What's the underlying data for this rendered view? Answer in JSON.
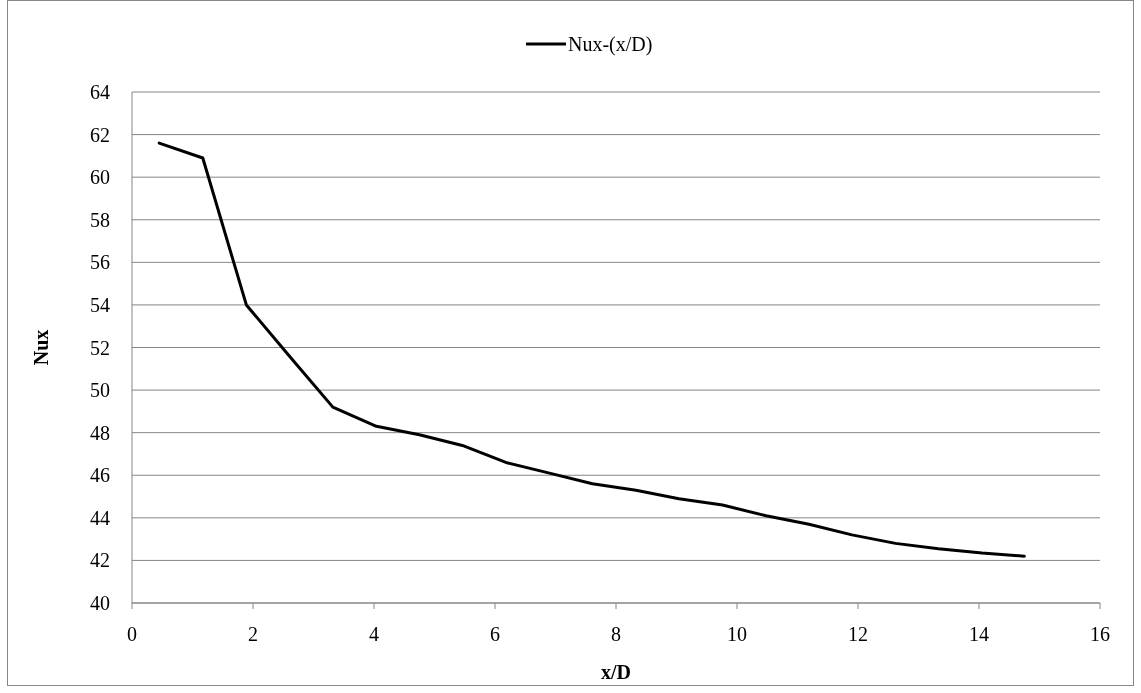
{
  "chart_data": {
    "type": "line",
    "xlabel": "x/D",
    "ylabel": "Nux",
    "x": [
      0.45,
      1.17,
      1.89,
      2.6,
      3.32,
      4.04,
      4.75,
      5.46,
      6.18,
      6.9,
      7.61,
      8.33,
      9.04,
      9.76,
      10.48,
      11.19,
      11.9,
      12.62,
      13.33,
      14.05,
      14.75
    ],
    "series": [
      {
        "name": "Nux-(x/D)",
        "color": "#000000",
        "values": [
          61.6,
          60.9,
          54.0,
          51.6,
          49.2,
          48.3,
          47.9,
          47.4,
          46.6,
          46.1,
          45.6,
          45.3,
          44.9,
          44.6,
          44.1,
          43.7,
          43.2,
          42.8,
          42.55,
          42.35,
          42.2
        ]
      }
    ],
    "xlim": [
      0,
      16
    ],
    "xticks": [
      0,
      2,
      4,
      6,
      8,
      10,
      12,
      14,
      16
    ],
    "ylim": [
      40,
      64
    ],
    "yticks": [
      40,
      42,
      44,
      46,
      48,
      50,
      52,
      54,
      56,
      58,
      60,
      62,
      64
    ],
    "grid": "y",
    "legend": "top",
    "marker": "none",
    "line_style": "solid"
  }
}
